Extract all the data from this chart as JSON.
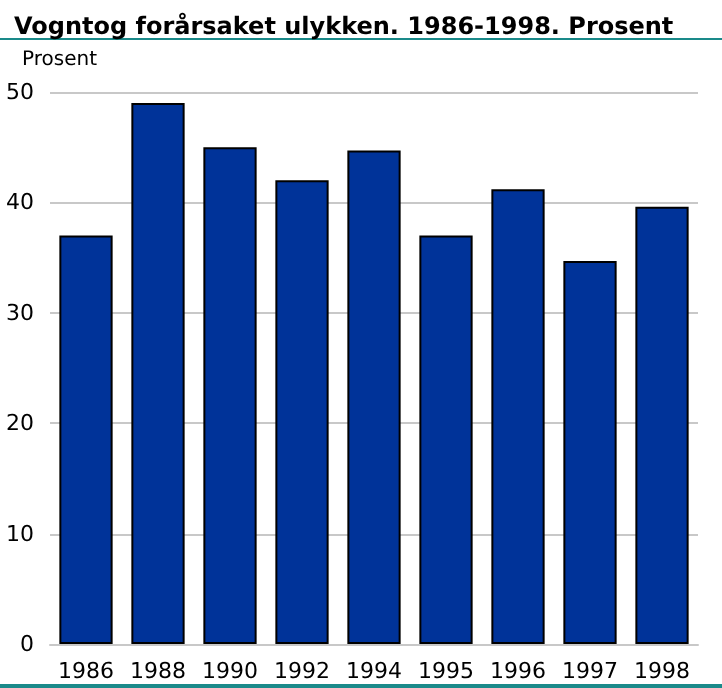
{
  "chart_data": {
    "type": "bar",
    "title": "Vogntog forårsaket ulykken. 1986-1998. Prosent",
    "ylabel": "Prosent",
    "categories": [
      "1986",
      "1988",
      "1990",
      "1992",
      "1994",
      "1995",
      "1996",
      "1997",
      "1998"
    ],
    "values": [
      37,
      49,
      45,
      42,
      44.7,
      37,
      41.2,
      34.7,
      39.6
    ],
    "color": "#003399",
    "ylim": [
      0,
      50
    ],
    "yticks": [
      0,
      10,
      20,
      30,
      40,
      50
    ],
    "grid": "y"
  }
}
